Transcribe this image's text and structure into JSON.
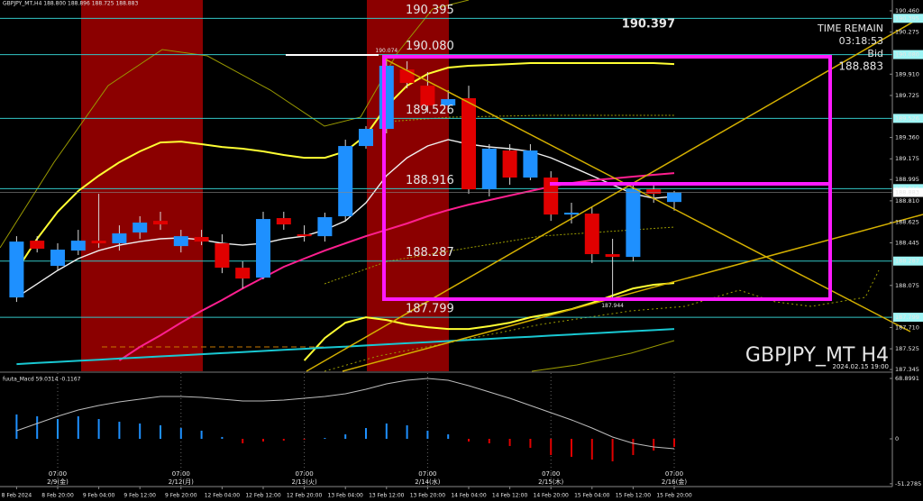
{
  "chart_data": {
    "type": "candlestick",
    "title": "GBPJPY_MT H4",
    "header": "GBPJPY_MT,H4 188.800 188.896 188.725 188.883",
    "timestamp": "2024.02.15 19:00",
    "categories": [
      "8 Feb 2024",
      null,
      "8 Feb 20:00",
      null,
      "9 Feb 04:00",
      null,
      "9 Feb 12:00",
      null,
      "9 Feb 20:00",
      null,
      "12 Feb 04:00",
      null,
      "12 Feb 12:00",
      null,
      "12 Feb 20:00",
      null,
      "13 Feb 04:00",
      null,
      "13 Feb 12:00",
      null,
      "13 Feb 20:00",
      null,
      "14 Feb 04:00",
      null,
      "14 Feb 12:00",
      null,
      "14 Feb 20:00",
      null,
      "15 Feb 04:00",
      null,
      "15 Feb 12:00",
      null,
      "15 Feb 20:00"
    ],
    "open": [
      187.971,
      188.464,
      188.245,
      188.378,
      188.464,
      188.441,
      188.535,
      188.636,
      188.417,
      188.496,
      188.441,
      188.229,
      188.143,
      188.66,
      188.519,
      188.503,
      188.676,
      189.286,
      189.435,
      189.951,
      189.81,
      189.638,
      189.701,
      188.91,
      189.247,
      189.012,
      189.012,
      188.691,
      188.699,
      188.347,
      188.323,
      188.91,
      188.8
    ],
    "high": [
      188.503,
      188.503,
      188.441,
      188.558,
      188.871,
      188.597,
      188.676,
      188.715,
      188.558,
      188.558,
      188.519,
      188.284,
      188.715,
      188.715,
      188.597,
      188.707,
      189.341,
      189.458,
      190.074,
      190.022,
      189.928,
      189.771,
      189.81,
      189.302,
      189.302,
      189.302,
      189.067,
      188.793,
      188.754,
      188.48,
      188.949,
      188.949,
      188.896
    ],
    "low": [
      187.932,
      188.362,
      188.206,
      188.339,
      188.402,
      188.378,
      188.48,
      188.558,
      188.362,
      188.425,
      188.182,
      188.049,
      188.128,
      188.558,
      188.456,
      188.456,
      188.636,
      189.263,
      189.396,
      189.787,
      189.576,
      189.576,
      188.871,
      188.848,
      188.949,
      188.989,
      188.636,
      188.613,
      188.269,
      187.944,
      188.284,
      188.793,
      188.725
    ],
    "close": [
      188.456,
      188.394,
      188.386,
      188.464,
      188.441,
      188.527,
      188.621,
      188.605,
      188.503,
      188.456,
      188.229,
      188.135,
      188.652,
      188.605,
      188.503,
      188.668,
      189.286,
      189.435,
      189.983,
      189.834,
      189.638,
      189.693,
      188.91,
      189.263,
      189.012,
      189.247,
      188.691,
      188.707,
      188.347,
      188.323,
      188.91,
      188.871,
      188.883
    ],
    "up_color": "#1e90ff",
    "down_color": "#e00000",
    "wick_color": "#d8d8d8",
    "ylim": [
      187.33,
      190.554
    ],
    "yticks": [
      {
        "value": 190.46,
        "label": "190.460"
      },
      190.275,
      {
        "value": 189.91,
        "label": "189.910"
      },
      189.725,
      {
        "value": 189.36,
        "label": "189.360"
      },
      189.175,
      188.995,
      {
        "value": 188.81,
        "label": "188.810"
      },
      188.625,
      188.445,
      188.075,
      {
        "value": 187.71,
        "label": "187.710"
      },
      187.525,
      187.345
    ],
    "current_price": 188.883,
    "price_levels": [
      190.395,
      {
        "value": 190.08,
        "label": "190.080"
      },
      189.526,
      188.916,
      188.287,
      187.799
    ],
    "level_color": "#33c6c6",
    "indicators": [
      {
        "color": "#ffff33",
        "values": [
          188.206,
          188.48,
          188.715,
          188.895,
          189.028,
          189.145,
          189.239,
          189.317,
          189.325,
          189.302,
          189.278,
          189.263,
          189.239,
          189.208,
          189.184,
          189.184,
          189.239,
          189.38,
          189.63,
          189.81,
          189.912,
          189.967,
          189.983,
          189.99,
          189.998,
          190.006,
          190.006,
          190.006,
          190.006,
          190.006,
          190.006,
          190.006,
          189.998
        ]
      },
      {
        "color": "#ffff33",
        "values": [
          null,
          null,
          null,
          null,
          null,
          null,
          null,
          null,
          null,
          null,
          null,
          null,
          null,
          null,
          187.423,
          187.619,
          187.752,
          187.799,
          187.775,
          187.736,
          187.713,
          187.697,
          187.697,
          187.721,
          187.752,
          187.799,
          187.83,
          187.869,
          187.924,
          187.987,
          188.049,
          188.081,
          188.096
        ]
      },
      {
        "color": "#f0f0f0",
        "values": [
          187.971,
          188.088,
          188.206,
          188.308,
          188.378,
          188.425,
          188.456,
          188.48,
          188.488,
          188.472,
          188.441,
          188.425,
          188.441,
          188.48,
          188.503,
          188.558,
          188.636,
          188.793,
          189.028,
          189.184,
          189.286,
          189.341,
          189.302,
          189.278,
          189.263,
          189.239,
          189.184,
          189.106,
          189.028,
          188.949,
          188.871,
          188.832,
          188.848
        ]
      },
      {
        "color": "#ff1f8f",
        "values": [
          null,
          null,
          null,
          null,
          null,
          187.423,
          187.541,
          187.642,
          187.752,
          187.854,
          187.948,
          188.049,
          188.143,
          188.237,
          188.308,
          188.378,
          188.441,
          188.503,
          188.558,
          188.613,
          188.676,
          188.73,
          188.777,
          188.816,
          188.856,
          188.895,
          188.934,
          188.965,
          188.989,
          189.004,
          189.02,
          189.036,
          189.051
        ]
      },
      {
        "color": "#19c8d2",
        "values": [
          187.392,
          187.402,
          187.411,
          187.421,
          187.43,
          187.44,
          187.449,
          187.459,
          187.468,
          187.478,
          187.487,
          187.497,
          187.506,
          187.516,
          187.525,
          187.535,
          187.544,
          187.554,
          187.564,
          187.573,
          187.583,
          187.592,
          187.602,
          187.611,
          187.621,
          187.63,
          187.64,
          187.649,
          187.659,
          187.668,
          187.678,
          187.687,
          187.697
        ]
      }
    ],
    "info_panel": {
      "price": "190.397",
      "time_remain_label": "TIME REMAIN",
      "time_remain": "03:18:53",
      "bid_label": "Bid",
      "bid": "188.883"
    },
    "day_markers": [
      {
        "time": "07:00",
        "date": "2/9(金)",
        "at": "8 Feb 20:00"
      },
      {
        "time": "07:00",
        "date": "2/12(月)",
        "at": "9 Feb 20:00"
      },
      {
        "time": "07:00",
        "date": "2/13(火)",
        "at": "12 Feb 20:00"
      },
      {
        "time": "07:00",
        "date": "2/14(水)",
        "at": "13 Feb 20:00"
      },
      {
        "time": "07:00",
        "date": "2/15(木)",
        "at": "14 Feb 20:00"
      },
      {
        "time": "07:00",
        "date": "2/16(金)",
        "at": "15 Feb 20:00"
      }
    ],
    "macd": {
      "title": "fuuta_Macd 59.0314 -0.1167",
      "ylim": [
        -54.5,
        75.07
      ],
      "yticks": [
        68.8991,
        0,
        -51.2785
      ],
      "up_color": "#1e90ff",
      "down_color": "#e00000",
      "histogram": [
        27.8,
        25.7,
        22.6,
        25.7,
        22.6,
        19.5,
        17.5,
        15.4,
        12.3,
        9.3,
        2.1,
        -5.1,
        -3.1,
        -2.1,
        -1.0,
        1.0,
        5.1,
        12.3,
        17.5,
        15.4,
        9.3,
        5.1,
        -3.1,
        -5.1,
        -8.2,
        -10.3,
        -18.5,
        -20.6,
        -23.7,
        -25.7,
        -18.5,
        -13.4,
        -9.3
      ],
      "signal": {
        "color": "#bdbdbd",
        "values": [
          9.3,
          17.5,
          25.7,
          32.9,
          38.0,
          42.2,
          45.2,
          48.3,
          48.3,
          47.3,
          45.2,
          43.2,
          43.2,
          44.2,
          46.3,
          48.3,
          51.4,
          56.6,
          62.7,
          66.8,
          68.9,
          66.8,
          60.7,
          53.5,
          46.3,
          38.0,
          29.8,
          21.6,
          12.3,
          2.1,
          -5.1,
          -9.3,
          -11.3
        ]
      }
    }
  }
}
